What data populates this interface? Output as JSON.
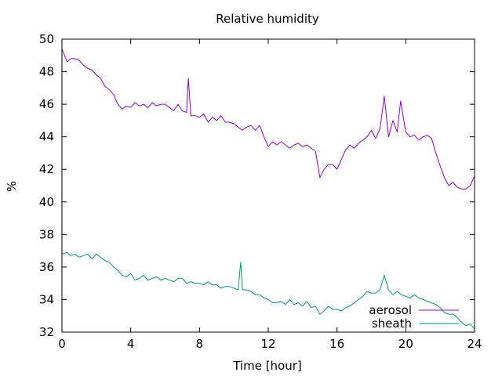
{
  "chart_data": {
    "type": "line",
    "title": "Relative humidity",
    "xlabel": "Time [hour]",
    "ylabel": "%",
    "xlim": [
      0,
      24
    ],
    "ylim": [
      32,
      50
    ],
    "xticks": [
      0,
      4,
      8,
      12,
      16,
      20,
      24
    ],
    "yticks": [
      32,
      34,
      36,
      38,
      40,
      42,
      44,
      46,
      48,
      50
    ],
    "grid": false,
    "legend_position": "bottom-right",
    "series": [
      {
        "name": "aerosol",
        "color": "#9400d3",
        "x": [
          0,
          0.3,
          0.5,
          0.75,
          1,
          1.25,
          1.5,
          1.75,
          2,
          2.25,
          2.5,
          2.75,
          3,
          3.25,
          3.5,
          3.75,
          4,
          4.25,
          4.5,
          4.75,
          5,
          5.25,
          5.5,
          5.75,
          6,
          6.25,
          6.5,
          6.75,
          7,
          7.25,
          7.35,
          7.5,
          7.75,
          8,
          8.25,
          8.5,
          8.75,
          9,
          9.25,
          9.5,
          9.75,
          10,
          10.25,
          10.5,
          10.75,
          11,
          11.25,
          11.5,
          11.75,
          12,
          12.25,
          12.5,
          12.75,
          13,
          13.25,
          13.5,
          13.75,
          14,
          14.25,
          14.5,
          14.75,
          15,
          15.25,
          15.5,
          15.75,
          16,
          16.25,
          16.5,
          16.75,
          17,
          17.25,
          17.5,
          17.75,
          18,
          18.25,
          18.5,
          18.75,
          19,
          19.25,
          19.5,
          19.7,
          20,
          20.25,
          20.5,
          20.75,
          21,
          21.25,
          21.5,
          21.75,
          22,
          22.25,
          22.5,
          22.75,
          23,
          23.25,
          23.5,
          23.75,
          24
        ],
        "y": [
          49.4,
          48.6,
          48.8,
          48.8,
          48.7,
          48.4,
          48.2,
          48.1,
          47.8,
          47.6,
          47.1,
          46.9,
          46.6,
          46.0,
          45.7,
          45.9,
          45.8,
          46.1,
          45.9,
          46.0,
          45.8,
          46.1,
          45.9,
          46.0,
          46.0,
          45.8,
          45.6,
          46.0,
          45.6,
          45.5,
          47.6,
          45.3,
          45.3,
          45.2,
          45.4,
          44.9,
          45.2,
          45.0,
          45.3,
          44.9,
          44.9,
          44.8,
          44.6,
          44.4,
          44.6,
          44.7,
          44.4,
          44.7,
          44.0,
          43.4,
          43.7,
          43.5,
          43.7,
          43.5,
          43.3,
          43.5,
          43.6,
          43.4,
          43.5,
          43.3,
          43.1,
          41.5,
          42.0,
          42.3,
          42.3,
          42.0,
          42.6,
          43.2,
          43.5,
          43.3,
          43.6,
          43.8,
          44.0,
          44.4,
          43.9,
          44.5,
          46.5,
          44.0,
          45.0,
          44.3,
          46.2,
          44.3,
          44.0,
          44.1,
          43.8,
          44.0,
          44.1,
          43.9,
          43.0,
          42.2,
          41.5,
          41.0,
          41.2,
          40.9,
          40.8,
          40.8,
          41.0,
          41.6
        ]
      },
      {
        "name": "sheath",
        "color": "#009e73",
        "x": [
          0,
          0.3,
          0.5,
          0.75,
          1,
          1.25,
          1.5,
          1.75,
          2,
          2.25,
          2.5,
          2.75,
          3,
          3.25,
          3.5,
          3.75,
          4,
          4.25,
          4.5,
          4.75,
          5,
          5.25,
          5.5,
          5.75,
          6,
          6.25,
          6.5,
          6.75,
          7,
          7.25,
          7.5,
          7.75,
          8,
          8.25,
          8.5,
          8.75,
          9,
          9.25,
          9.5,
          9.75,
          10,
          10.25,
          10.4,
          10.5,
          10.75,
          11,
          11.25,
          11.5,
          11.75,
          12,
          12.25,
          12.5,
          12.75,
          13,
          13.25,
          13.5,
          13.75,
          14,
          14.25,
          14.5,
          14.75,
          15,
          15.25,
          15.5,
          15.75,
          16,
          16.25,
          16.5,
          16.75,
          17,
          17.25,
          17.5,
          17.75,
          18,
          18.25,
          18.5,
          18.75,
          19,
          19.25,
          19.5,
          19.75,
          20,
          20.25,
          20.5,
          20.75,
          21,
          21.25,
          21.5,
          21.75,
          22,
          22.25,
          22.5,
          22.75,
          23,
          23.25,
          23.5,
          23.75,
          24
        ],
        "y": [
          36.8,
          36.9,
          36.7,
          36.8,
          36.6,
          36.7,
          36.8,
          36.5,
          36.8,
          36.6,
          36.4,
          36.3,
          36.0,
          35.8,
          35.5,
          35.4,
          35.6,
          35.2,
          35.3,
          35.5,
          35.2,
          35.3,
          35.4,
          35.2,
          35.3,
          35.2,
          35.1,
          35.3,
          35.3,
          35.0,
          35.1,
          35.0,
          35.0,
          34.9,
          35.1,
          34.9,
          34.9,
          34.7,
          34.8,
          34.8,
          34.7,
          34.6,
          36.3,
          34.6,
          34.6,
          34.5,
          34.3,
          34.3,
          34.1,
          34.0,
          33.8,
          33.8,
          33.9,
          33.7,
          34.0,
          33.7,
          33.8,
          33.6,
          33.9,
          33.5,
          33.6,
          33.1,
          33.3,
          33.6,
          33.4,
          33.4,
          33.3,
          33.5,
          33.6,
          33.8,
          34.0,
          34.2,
          34.5,
          34.4,
          34.4,
          34.6,
          35.5,
          34.6,
          34.3,
          34.5,
          34.3,
          34.2,
          34.1,
          34.3,
          34.1,
          34.0,
          33.9,
          33.8,
          33.7,
          33.5,
          33.2,
          33.1,
          33.1,
          32.9,
          32.6,
          32.4,
          32.5,
          32.2
        ]
      }
    ]
  }
}
